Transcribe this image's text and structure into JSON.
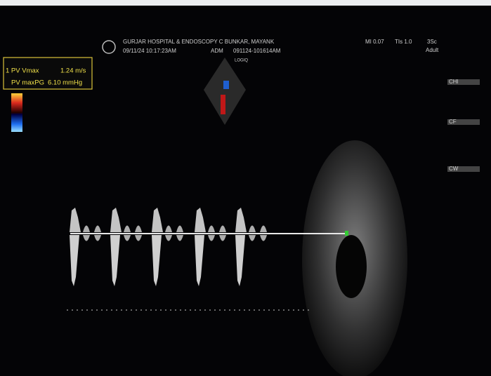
{
  "header": {
    "hospital": "GURJAR HOSPITAL & ENDOSCOPY C BUNKAR, MAYANK",
    "datetime": "09/11/24 10:17:23AM",
    "operator": "ADM",
    "exam_id": "091124-101614AM",
    "mi": "MI 0.07",
    "tis": "TIs 1.0",
    "probe": "3Sc",
    "preset": "Adult",
    "device": "LOGIQ"
  },
  "measurements": [
    {
      "label": "1 PV Vmax",
      "value": "1.24 m/s"
    },
    {
      "label": "PV maxPG",
      "value": "6.10 mmHg"
    }
  ],
  "side_panel": {
    "sections": [
      "CHI",
      "CF",
      "CW"
    ]
  }
}
